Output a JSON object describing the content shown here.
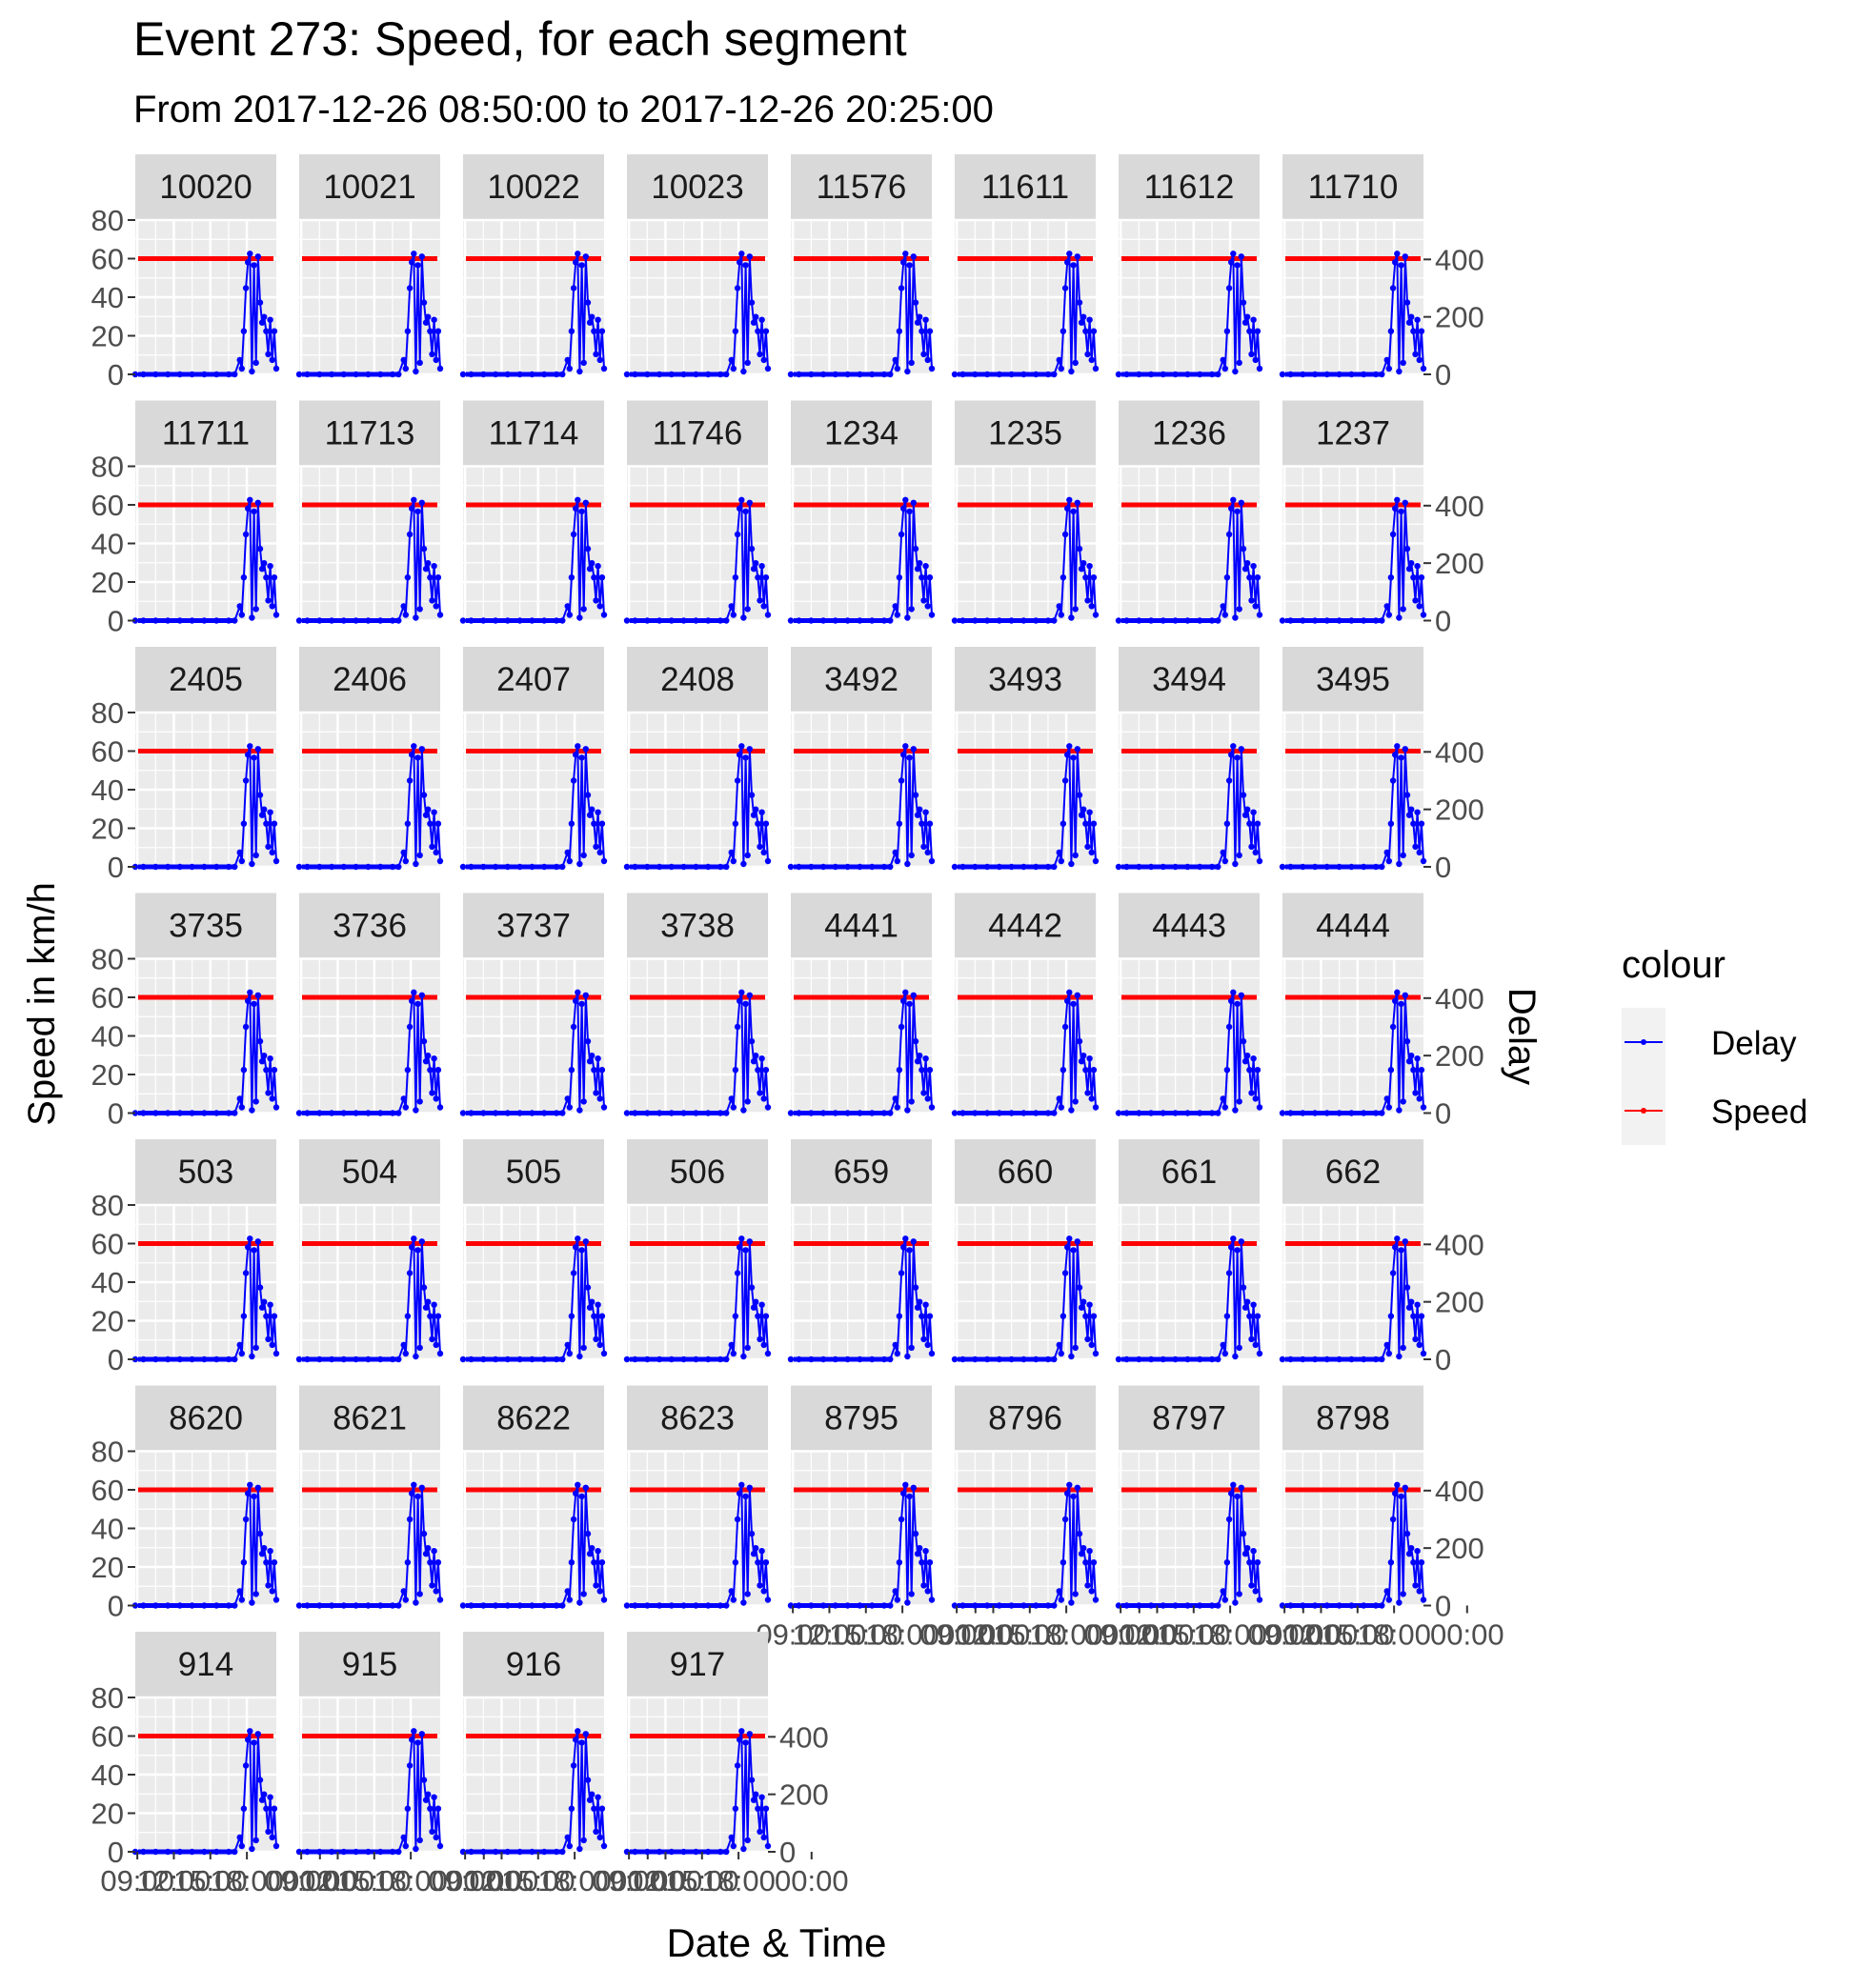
{
  "figure": {
    "title": "Event 273: Speed, for each segment",
    "subtitle": "From 2017-12-26 08:50:00 to 2017-12-26 20:25:00",
    "xlabel": "Date & Time",
    "ylabel_left": "Speed in km/h",
    "ylabel_right": "Delay"
  },
  "legend": {
    "title": "colour",
    "items": [
      {
        "label": "Delay",
        "color": "#0000ff"
      },
      {
        "label": "Speed",
        "color": "#ff0000"
      }
    ]
  },
  "colors": {
    "delay": "#0000ff",
    "speed": "#ff0000",
    "panel_bg": "#ebebeb",
    "strip_bg": "#d9d9d9",
    "grid": "#ffffff",
    "axis_text": "#4d4d4d"
  },
  "chart_data": {
    "type": "line",
    "facets": [
      "10020",
      "10021",
      "10022",
      "10023",
      "11576",
      "11611",
      "11612",
      "11710",
      "11711",
      "11713",
      "11714",
      "11746",
      "1234",
      "1235",
      "1236",
      "1237",
      "2405",
      "2406",
      "2407",
      "2408",
      "3492",
      "3493",
      "3494",
      "3495",
      "3735",
      "3736",
      "3737",
      "3738",
      "4441",
      "4442",
      "4443",
      "4444",
      "503",
      "504",
      "505",
      "506",
      "659",
      "660",
      "661",
      "662",
      "8620",
      "8621",
      "8622",
      "8623",
      "8795",
      "8796",
      "8797",
      "8798",
      "914",
      "915",
      "916",
      "917"
    ],
    "y_left": {
      "label": "Speed in km/h",
      "ticks": [
        0,
        20,
        40,
        60,
        80
      ],
      "range": [
        0,
        80
      ]
    },
    "y_right": {
      "label": "Delay",
      "ticks": [
        0,
        200,
        400
      ],
      "range": [
        0,
        537
      ]
    },
    "x": {
      "label": "Date & Time",
      "range": [
        "2017-12-26 08:50",
        "2017-12-26 20:25"
      ],
      "tick_labels": [
        "09:00",
        "12:00",
        "15:00",
        "18:00",
        "00:00"
      ]
    },
    "series": [
      {
        "name": "Speed",
        "axis": "left",
        "constant": 60
      },
      {
        "name": "Delay",
        "axis": "right",
        "x": [
          "08:50",
          "09:30",
          "10:30",
          "11:30",
          "12:30",
          "13:30",
          "14:30",
          "15:30",
          "16:30",
          "17:00",
          "17:25",
          "17:35",
          "17:45",
          "17:55",
          "18:05",
          "18:15",
          "18:25",
          "18:35",
          "18:45",
          "18:55",
          "19:05",
          "19:15",
          "19:25",
          "19:35",
          "19:45",
          "19:55",
          "20:05",
          "20:15",
          "20:25"
        ],
        "values": [
          0,
          0,
          0,
          0,
          0,
          0,
          0,
          0,
          0,
          0,
          50,
          20,
          150,
          300,
          390,
          420,
          10,
          380,
          40,
          410,
          250,
          180,
          200,
          150,
          70,
          190,
          50,
          150,
          20
        ]
      }
    ]
  }
}
